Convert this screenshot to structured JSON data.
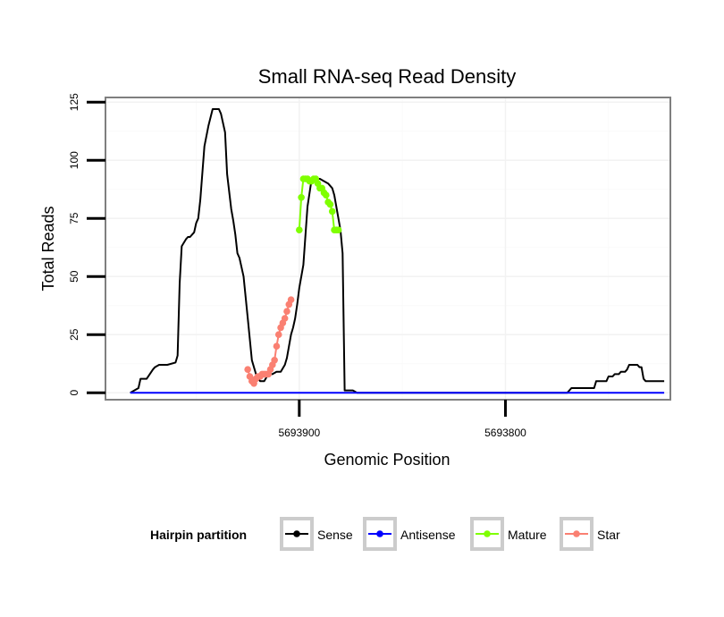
{
  "chart_data": {
    "type": "line",
    "title": "Small RNA-seq Read Density",
    "xlabel": "Genomic Position",
    "ylabel": "Total Reads",
    "x_reversed": true,
    "xlim": [
      5693994,
      5693720
    ],
    "ylim": [
      -3,
      127
    ],
    "x_ticks": [
      5693900,
      5693800
    ],
    "x_tick_labels": [
      "5693900",
      "5693800"
    ],
    "y_ticks": [
      0,
      25,
      50,
      75,
      100,
      125
    ],
    "y_tick_labels": [
      "0",
      "25",
      "50",
      "75",
      "100",
      "125"
    ],
    "grid": true,
    "legend": {
      "title": "Hairpin partition",
      "position": "bottom",
      "entries": [
        {
          "label": "Sense",
          "color": "#000000"
        },
        {
          "label": "Antisense",
          "color": "#0000ff"
        },
        {
          "label": "Mature",
          "color": "#7fff00"
        },
        {
          "label": "Star",
          "color": "#fa8072"
        }
      ]
    },
    "series": [
      {
        "name": "Sense",
        "color": "#000000",
        "markers": false,
        "x": [
          5693982,
          5693978,
          5693977,
          5693975,
          5693974,
          5693971,
          5693970,
          5693968,
          5693966,
          5693964,
          5693960,
          5693959,
          5693958,
          5693957,
          5693955,
          5693954,
          5693953,
          5693951,
          5693950,
          5693949,
          5693948,
          5693946,
          5693944,
          5693942,
          5693940,
          5693939,
          5693938,
          5693936,
          5693935,
          5693933,
          5693932,
          5693931,
          5693930,
          5693929,
          5693927,
          5693925,
          5693923,
          5693921,
          5693919,
          5693917,
          5693915,
          5693913,
          5693911,
          5693909,
          5693907,
          5693906,
          5693905,
          5693904,
          5693903,
          5693902,
          5693901,
          5693900,
          5693898,
          5693896,
          5693894,
          5693892,
          5693890,
          5693888,
          5693886,
          5693884,
          5693883,
          5693882,
          5693881,
          5693880,
          5693879,
          5693878,
          5693877,
          5693876,
          5693874,
          5693872,
          5693870,
          5693868,
          5693866,
          5693864,
          5693860,
          5693855,
          5693850,
          5693840,
          5693820,
          5693800,
          5693780,
          5693770,
          5693768,
          5693757,
          5693756,
          5693751,
          5693750,
          5693748,
          5693747,
          5693745,
          5693744,
          5693742,
          5693741,
          5693740,
          5693736,
          5693735,
          5693734,
          5693733,
          5693732,
          5693731,
          5693723
        ],
        "y": [
          0,
          2,
          6,
          6,
          6,
          10,
          11,
          12,
          12,
          12,
          13,
          16,
          47,
          63,
          66,
          67,
          67,
          69,
          73,
          75,
          83,
          106,
          115,
          122,
          122,
          122,
          120,
          112,
          94,
          79,
          74,
          68,
          60,
          58,
          50,
          32,
          14,
          8,
          5,
          5,
          8,
          8,
          9,
          9,
          12,
          15,
          20,
          25,
          28,
          32,
          38,
          45,
          55,
          80,
          92,
          92,
          92,
          91,
          90,
          88,
          85,
          80,
          75,
          70,
          60,
          1,
          1,
          1,
          1,
          0,
          0,
          0,
          0,
          0,
          0,
          0,
          0,
          0,
          0,
          0,
          0,
          0,
          2,
          2,
          5,
          5,
          7,
          7,
          8,
          8,
          9,
          9,
          10,
          12,
          12,
          11,
          11,
          6,
          5,
          5,
          5
        ]
      },
      {
        "name": "Antisense",
        "color": "#0000ff",
        "markers": false,
        "x": [
          5693982,
          5693723
        ],
        "y": [
          0,
          0
        ]
      },
      {
        "name": "Mature",
        "color": "#7fff00",
        "markers": true,
        "x": [
          5693900,
          5693899,
          5693898,
          5693897,
          5693896,
          5693895,
          5693894,
          5693893,
          5693892,
          5693891,
          5693890,
          5693889,
          5693888,
          5693887,
          5693886,
          5693885,
          5693884,
          5693883,
          5693882,
          5693881
        ],
        "y": [
          70,
          84,
          92,
          92,
          92,
          91,
          91,
          92,
          92,
          90,
          88,
          88,
          86,
          85,
          82,
          81,
          78,
          70,
          70,
          70
        ]
      },
      {
        "name": "Star",
        "color": "#fa8072",
        "markers": true,
        "x": [
          5693925,
          5693924,
          5693923,
          5693922,
          5693921,
          5693920,
          5693919,
          5693918,
          5693917,
          5693916,
          5693915,
          5693914,
          5693913,
          5693912,
          5693911,
          5693910,
          5693909,
          5693908,
          5693907,
          5693906,
          5693905,
          5693904
        ],
        "y": [
          10,
          7,
          5,
          4,
          6,
          7,
          7,
          8,
          8,
          8,
          8,
          10,
          12,
          14,
          20,
          25,
          28,
          30,
          32,
          35,
          38,
          40
        ]
      }
    ]
  }
}
